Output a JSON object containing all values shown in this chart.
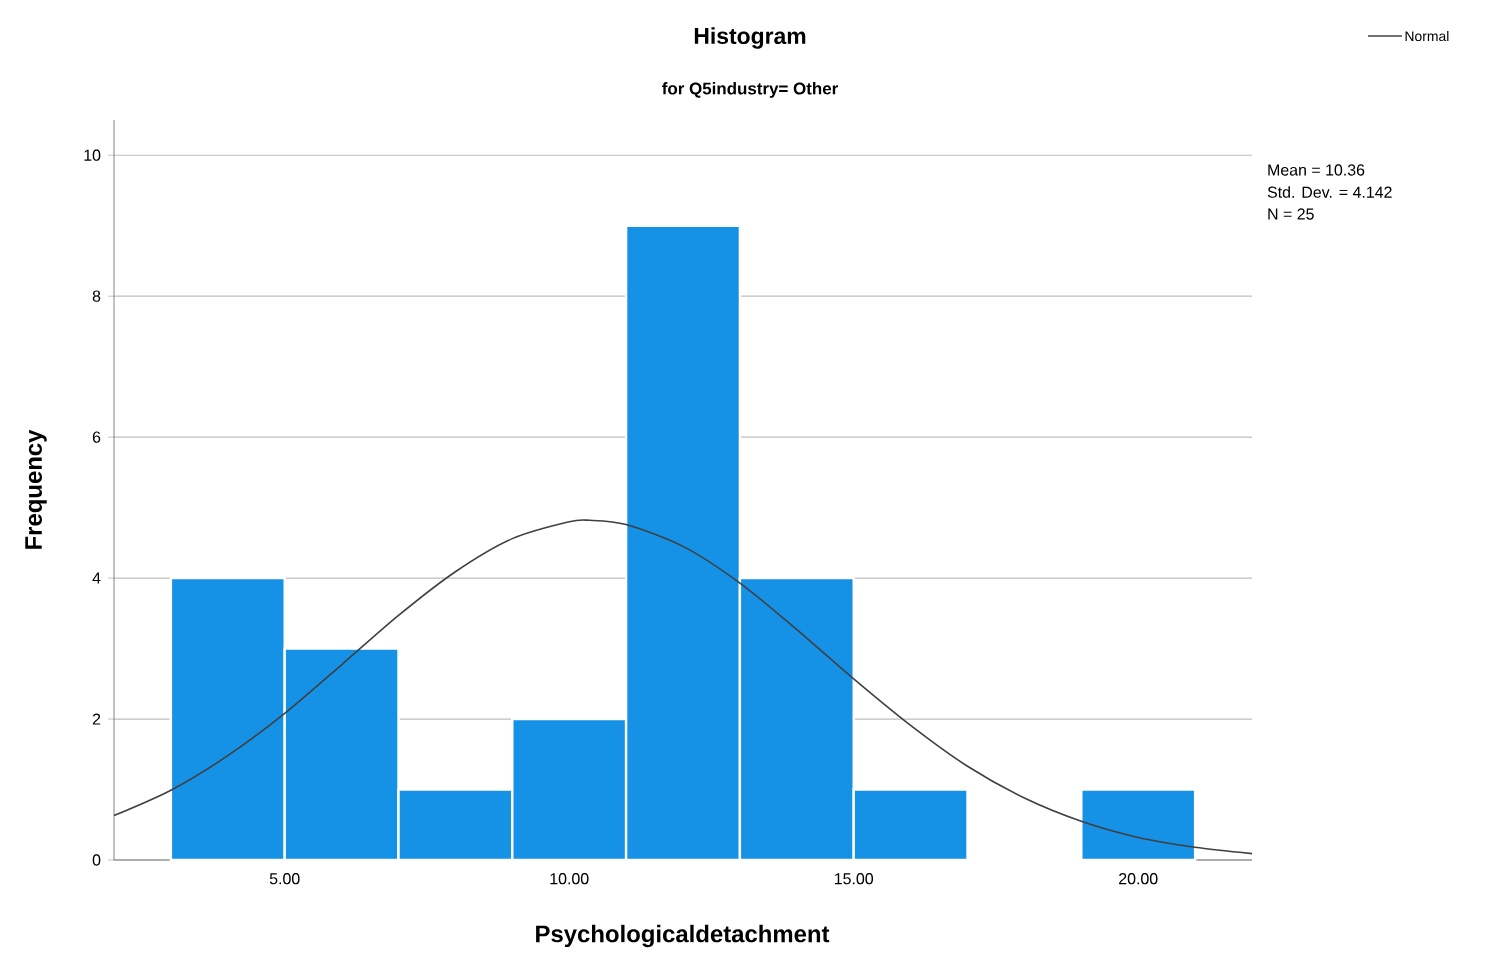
{
  "chart_data": {
    "type": "histogram",
    "title": "Histogram",
    "subtitle": "for Q5industry= Other",
    "xlabel": "Psychologicaldetachment",
    "ylabel": "Frequency",
    "bins": [
      3,
      5,
      7,
      9,
      11,
      13,
      15,
      17,
      19,
      21
    ],
    "values": [
      4,
      3,
      1,
      2,
      9,
      4,
      1,
      0,
      1
    ],
    "color": "#1591e6",
    "series": [
      {
        "name": "Normal",
        "type": "line",
        "color": "#404040",
        "x": [
          2,
          3,
          4,
          5,
          6,
          7,
          8,
          9,
          10,
          10.36,
          11,
          12,
          13,
          14,
          15,
          16,
          17,
          18,
          19,
          20,
          21,
          22
        ],
        "values": [
          0.63,
          0.99,
          1.48,
          2.08,
          2.77,
          3.47,
          4.09,
          4.56,
          4.8,
          4.82,
          4.76,
          4.45,
          3.93,
          3.27,
          2.57,
          1.91,
          1.33,
          0.88,
          0.55,
          0.32,
          0.18,
          0.09
        ]
      }
    ],
    "xlim": [
      2,
      22
    ],
    "ylim": [
      0,
      10.5
    ],
    "xticks": [
      {
        "value": 5,
        "label": "5.00"
      },
      {
        "value": 10,
        "label": "10.00"
      },
      {
        "value": 15,
        "label": "15.00"
      },
      {
        "value": 20,
        "label": "20.00"
      }
    ],
    "yticks": [
      0,
      2,
      4,
      6,
      8,
      10
    ],
    "grid": "y",
    "legend": "top right",
    "annotations": [
      "Mean = 10.36",
      "Std. Dev. = 4.142",
      "N = 25"
    ]
  }
}
